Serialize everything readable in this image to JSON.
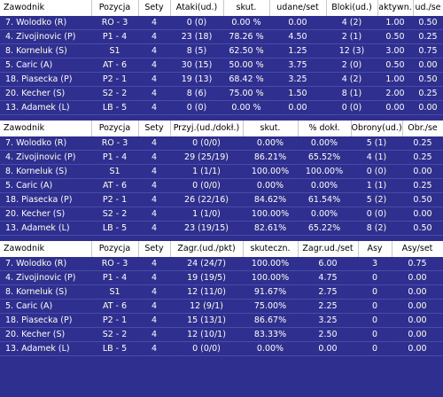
{
  "table1": {
    "headers": [
      "Zawodnik",
      "Pozycja",
      "Sety",
      "Ataki(ud.)",
      "skut.",
      "udane/set",
      "Bloki(ud.)",
      "aktywn.",
      "ud./se"
    ],
    "rows": [
      [
        "7. Wolodko (R)",
        "RO - 3",
        "4",
        "0 (0)",
        "0.00 %",
        "0.00",
        "4 (2)",
        "1.00",
        "0.50"
      ],
      [
        "4. Zivojinovic (P)",
        "P1 - 4",
        "4",
        "23 (18)",
        "78.26 %",
        "4.50",
        "2 (1)",
        "0.50",
        "0.25"
      ],
      [
        "8. Korneluk (S)",
        "S1",
        "4",
        "8 (5)",
        "62.50 %",
        "1.25",
        "12 (3)",
        "3.00",
        "0.75"
      ],
      [
        "5. Caric (A)",
        "AT - 6",
        "4",
        "30 (15)",
        "50.00 %",
        "3.75",
        "2 (0)",
        "0.50",
        "0.00"
      ],
      [
        "18. Piasecka (P)",
        "P2 - 1",
        "4",
        "19 (13)",
        "68.42 %",
        "3.25",
        "4 (2)",
        "1.00",
        "0.50"
      ],
      [
        "20. Kecher (S)",
        "S2 - 2",
        "4",
        "8 (6)",
        "75.00 %",
        "1.50",
        "8 (1)",
        "2.00",
        "0.25"
      ],
      [
        "13. Adamek (L)",
        "LB - 5",
        "4",
        "0 (0)",
        "0.00 %",
        "0.00",
        "0 (0)",
        "0.00",
        "0.00"
      ]
    ]
  },
  "table2": {
    "headers": [
      "Zawodnik",
      "Pozycja",
      "Sety",
      "Przyj.(ud./dokł.)",
      "skut.",
      "% dokł.",
      "Obrony(ud.)",
      "Obr./se"
    ],
    "rows": [
      [
        "7. Wolodko (R)",
        "RO - 3",
        "4",
        "0 (0/0)",
        "0.00%",
        "0.00%",
        "5 (1)",
        "0.25"
      ],
      [
        "4. Zivojinovic (P)",
        "P1 - 4",
        "4",
        "29 (25/19)",
        "86.21%",
        "65.52%",
        "4 (1)",
        "0.25"
      ],
      [
        "8. Korneluk (S)",
        "S1",
        "4",
        "1 (1/1)",
        "100.00%",
        "100.00%",
        "0 (0)",
        "0.00"
      ],
      [
        "5. Caric (A)",
        "AT - 6",
        "4",
        "0 (0/0)",
        "0.00%",
        "0.00%",
        "1 (1)",
        "0.25"
      ],
      [
        "18. Piasecka (P)",
        "P2 - 1",
        "4",
        "26 (22/16)",
        "84.62%",
        "61.54%",
        "5 (2)",
        "0.50"
      ],
      [
        "20. Kecher (S)",
        "S2 - 2",
        "4",
        "1 (1/0)",
        "100.00%",
        "0.00%",
        "0 (0)",
        "0.00"
      ],
      [
        "13. Adamek (L)",
        "LB - 5",
        "4",
        "23 (19/15)",
        "82.61%",
        "65.22%",
        "8 (2)",
        "0.50"
      ]
    ]
  },
  "table3": {
    "headers": [
      "Zawodnik",
      "Pozycja",
      "Sety",
      "Zagr.(ud./pkt)",
      "skuteczn.",
      "Zagr.ud./set",
      "Asy",
      "Asy/set"
    ],
    "rows": [
      [
        "7. Wolodko (R)",
        "RO - 3",
        "4",
        "24 (24/7)",
        "100.00%",
        "6.00",
        "3",
        "0.75"
      ],
      [
        "4. Zivojinovic (P)",
        "P1 - 4",
        "4",
        "19 (19/5)",
        "100.00%",
        "4.75",
        "0",
        "0.00"
      ],
      [
        "8. Korneluk (S)",
        "S1",
        "4",
        "12 (11/0)",
        "91.67%",
        "2.75",
        "0",
        "0.00"
      ],
      [
        "5. Caric (A)",
        "AT - 6",
        "4",
        "12 (9/1)",
        "75.00%",
        "2.25",
        "0",
        "0.00"
      ],
      [
        "18. Piasecka (P)",
        "P2 - 1",
        "4",
        "15 (13/1)",
        "86.67%",
        "3.25",
        "0",
        "0.00"
      ],
      [
        "20. Kecher (S)",
        "S2 - 2",
        "4",
        "12 (10/1)",
        "83.33%",
        "2.50",
        "0",
        "0.00"
      ],
      [
        "13. Adamek (L)",
        "LB - 5",
        "4",
        "0 (0/0)",
        "0.00%",
        "0.00",
        "0",
        "0.00"
      ]
    ]
  }
}
